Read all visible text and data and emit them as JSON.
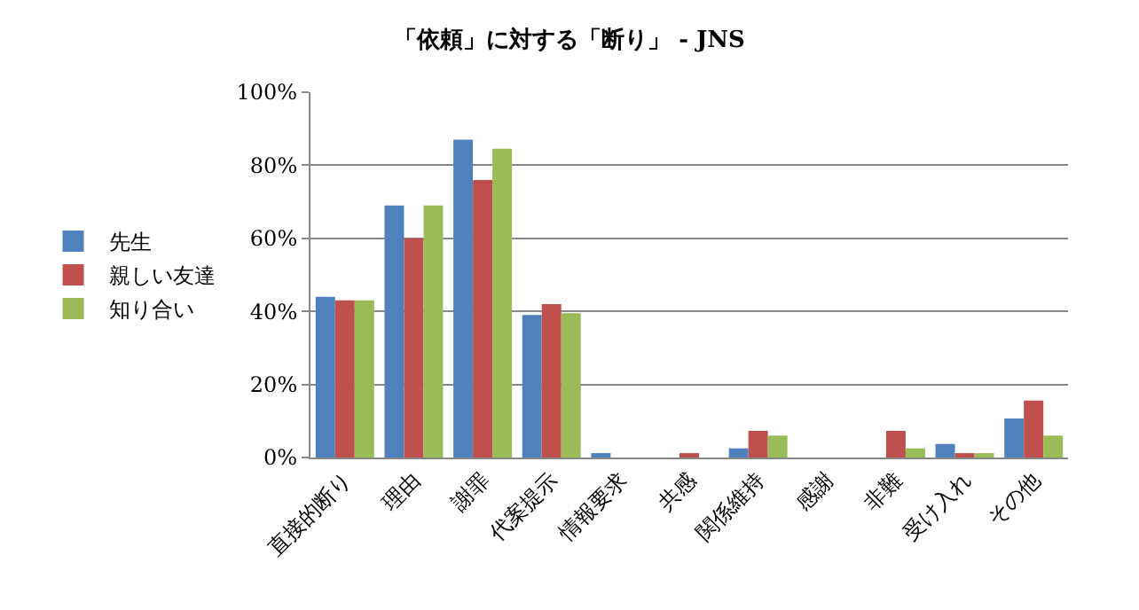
{
  "chart_data": {
    "type": "bar",
    "title": "「依頼」に対する「断り」 - JNS",
    "categories": [
      "直接的断り",
      "理由",
      "謝罪",
      "代案提示",
      "情報要求",
      "共感",
      "関係維持",
      "感謝",
      "非難",
      "受け入れ",
      "その他"
    ],
    "series": [
      {
        "name": "先生",
        "color": "#4f81bd",
        "values": [
          44,
          69,
          87,
          39,
          1.2,
          0,
          2.5,
          0,
          0,
          3.7,
          10.7
        ]
      },
      {
        "name": "親しい友達",
        "color": "#c0504d",
        "values": [
          43,
          60,
          76,
          42,
          0,
          1.2,
          7.3,
          0,
          7.3,
          1.2,
          15.6
        ]
      },
      {
        "name": "知り合い",
        "color": "#9bbb59",
        "values": [
          43,
          69,
          84.5,
          39.5,
          0,
          0,
          6,
          0,
          2.5,
          1.2,
          6
        ]
      }
    ],
    "ylim": [
      0,
      100
    ],
    "yticks": [
      {
        "value": 0,
        "label": "0%"
      },
      {
        "value": 20,
        "label": "20%"
      },
      {
        "value": 40,
        "label": "40%"
      },
      {
        "value": 60,
        "label": "60%"
      },
      {
        "value": 80,
        "label": "80%"
      },
      {
        "value": 100,
        "label": "100%"
      }
    ],
    "grid": "y",
    "legend": "left"
  }
}
